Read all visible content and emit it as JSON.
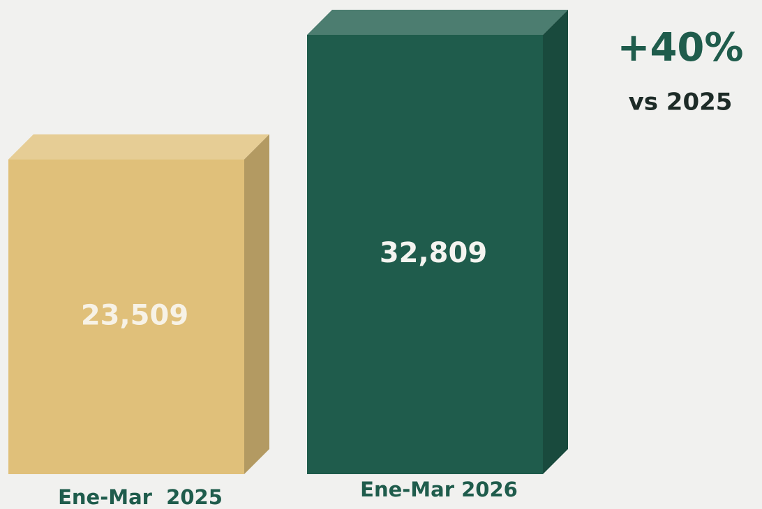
{
  "chart_data": {
    "type": "bar",
    "categories": [
      "Ene-Mar  2025",
      "Ene-Mar 2026"
    ],
    "values": [
      23509,
      32809
    ],
    "value_labels": [
      "23,509",
      "32,809"
    ],
    "colors": [
      "#e0c07a",
      "#1f5c4c"
    ],
    "annotations": [
      "+40%",
      "vs 2025"
    ]
  }
}
